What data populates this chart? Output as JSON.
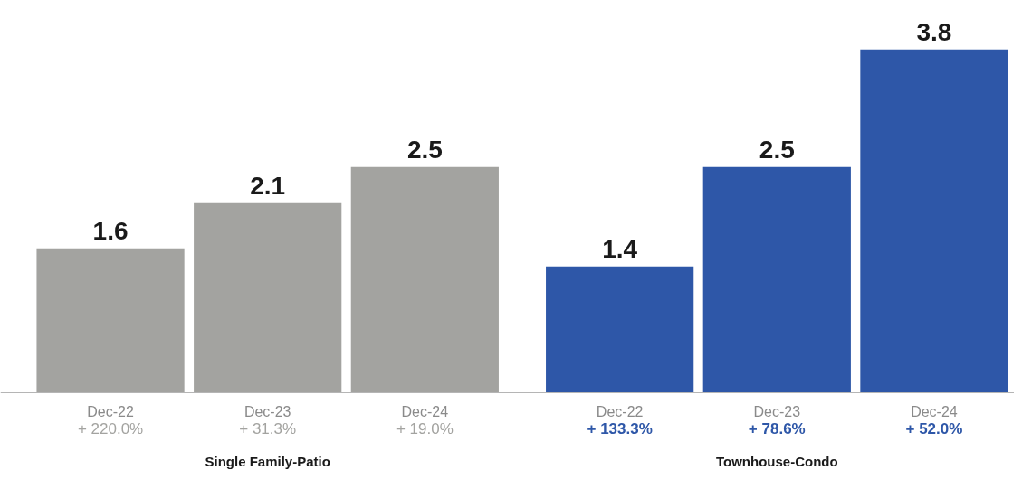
{
  "chart_data": {
    "type": "bar",
    "categories": [
      "Dec-22",
      "Dec-23",
      "Dec-24",
      "Dec-22",
      "Dec-23",
      "Dec-24"
    ],
    "values": [
      1.6,
      2.1,
      2.5,
      1.4,
      2.5,
      3.8
    ],
    "colors": [
      "#a3a3a0",
      "#a3a3a0",
      "#a3a3a0",
      "#2e57a8",
      "#2e57a8",
      "#2e57a8"
    ],
    "data_labels": true,
    "annotations": [
      "+ 220.0%",
      "+ 31.3%",
      "+ 19.0%",
      "+ 133.3%",
      "+ 78.6%",
      "+ 52.0%",
      "Single Family-Patio",
      "Townhouse-Condo"
    ],
    "grid": false
  }
}
